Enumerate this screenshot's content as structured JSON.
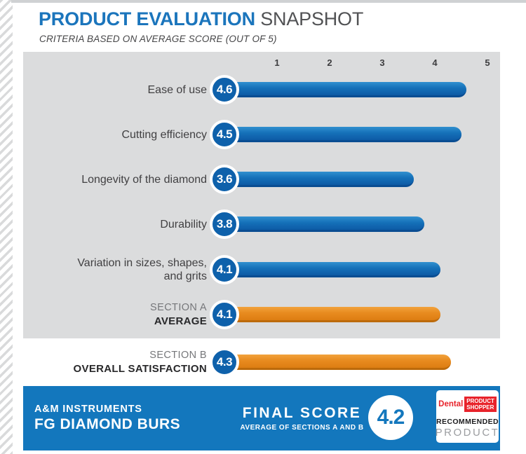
{
  "header": {
    "title_primary": "PRODUCT EVALUATION",
    "title_secondary": "SNAPSHOT",
    "subtitle": "CRITERIA BASED ON AVERAGE SCORE (OUT OF 5)"
  },
  "chart_data": {
    "type": "bar",
    "orientation": "horizontal",
    "title": "PRODUCT EVALUATION SNAPSHOT",
    "subtitle": "CRITERIA BASED ON AVERAGE SCORE (OUT OF 5)",
    "xlim": [
      0,
      5
    ],
    "ticks": [
      "1",
      "2",
      "3",
      "4",
      "5"
    ],
    "categories": [
      "Ease of use",
      "Cutting efficiency",
      "Longevity of the diamond",
      "Durability",
      "Variation in sizes, shapes, and grits",
      "Section A Average",
      "Section B Overall Satisfaction"
    ],
    "values": [
      4.6,
      4.5,
      3.6,
      3.8,
      4.1,
      4.1,
      4.3
    ],
    "bar_colors": [
      "blue",
      "blue",
      "blue",
      "blue",
      "blue",
      "orange",
      "orange"
    ],
    "grid": false,
    "legend": false
  },
  "rows": [
    {
      "lines": [
        {
          "text": "Ease of use",
          "style": "normal"
        }
      ],
      "score": "4.6",
      "value": 4.6,
      "palette": "blue"
    },
    {
      "lines": [
        {
          "text": "Cutting efficiency",
          "style": "normal"
        }
      ],
      "score": "4.5",
      "value": 4.5,
      "palette": "blue"
    },
    {
      "lines": [
        {
          "text": "Longevity of the diamond",
          "style": "normal"
        }
      ],
      "score": "3.6",
      "value": 3.6,
      "palette": "blue"
    },
    {
      "lines": [
        {
          "text": "Durability",
          "style": "normal"
        }
      ],
      "score": "3.8",
      "value": 3.8,
      "palette": "blue"
    },
    {
      "lines": [
        {
          "text": "Variation in sizes, shapes,",
          "style": "normal"
        },
        {
          "text": "and grits",
          "style": "normal"
        }
      ],
      "score": "4.1",
      "value": 4.1,
      "palette": "blue"
    },
    {
      "lines": [
        {
          "text": "SECTION A",
          "style": "muted"
        },
        {
          "text": "AVERAGE",
          "style": "bold"
        }
      ],
      "score": "4.1",
      "value": 4.1,
      "palette": "orange"
    },
    {
      "lines": [
        {
          "text": "SECTION B",
          "style": "muted"
        },
        {
          "text": "OVERALL SATISFACTION",
          "style": "bold"
        }
      ],
      "score": "4.3",
      "value": 4.3,
      "palette": "orange"
    }
  ],
  "footer": {
    "brand_line1": "A&M INSTRUMENTS",
    "brand_line2": "FG DIAMOND BURS",
    "final_score_label": "FINAL SCORE",
    "final_score_sub": "AVERAGE OF SECTIONS A AND B",
    "final_score_value": "4.2",
    "badge": {
      "logo_prefix": "Dental",
      "logo_box_line1": "PRODUCT",
      "logo_box_line2": "SHOPPER",
      "award_line1": "RECOMMENDED",
      "award_line2": "PRODUCT"
    }
  },
  "colors": {
    "title_blue": "#1b75bc",
    "bar_blue": "#1371ba",
    "bar_orange": "#e8891d",
    "badge_circle_blue": "#0e61ab",
    "footer_blue": "#1377bd",
    "logo_red": "#e8232b",
    "panel_gray": "#dbdcdd"
  }
}
